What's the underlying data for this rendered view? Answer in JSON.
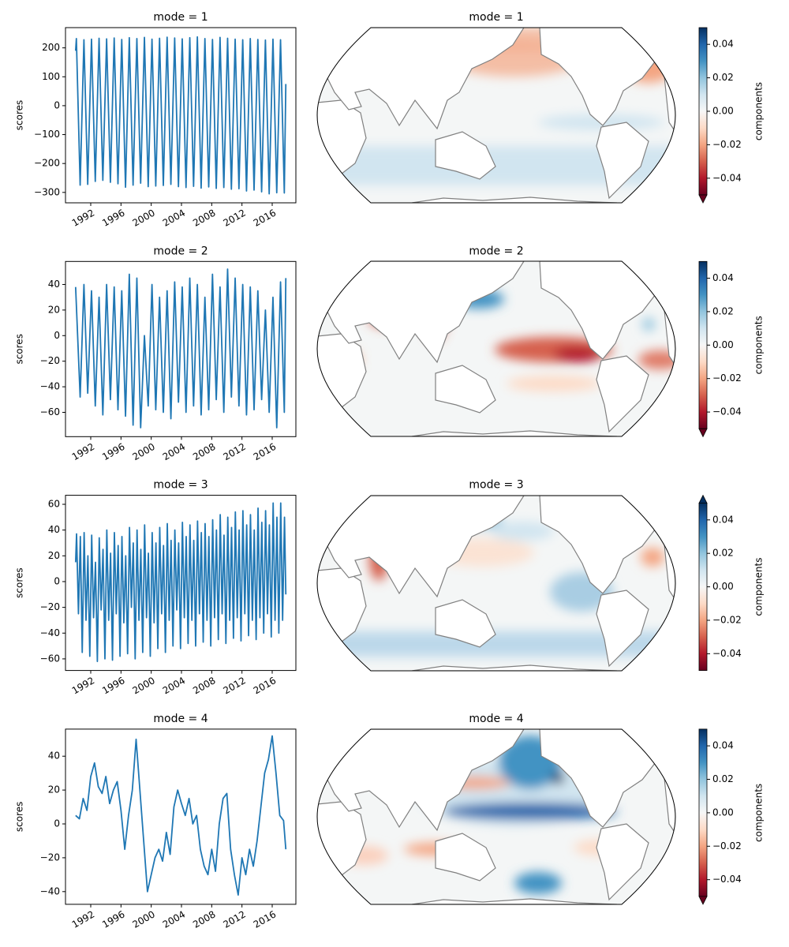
{
  "chart_data": [
    {
      "type": "line",
      "title": "mode = 1",
      "ylabel": "scores",
      "color": "#1f77b4",
      "xlim": [
        1988.66,
        2019.13
      ],
      "xticks": [
        1992,
        1996,
        2000,
        2004,
        2008,
        2012,
        2016
      ],
      "ylim": [
        -336,
        270
      ],
      "yticks": [
        {
          "value": -300,
          "label": "−300"
        },
        {
          "value": -200,
          "label": "−200"
        },
        {
          "value": -100,
          "label": "−100"
        },
        0,
        100,
        200
      ],
      "x": [
        1990.0,
        1990.1,
        1990.6,
        1991.1,
        1991.6,
        1992.1,
        1992.6,
        1993.1,
        1993.6,
        1994.1,
        1994.6,
        1995.1,
        1995.6,
        1996.1,
        1996.6,
        1997.1,
        1997.6,
        1998.1,
        1998.6,
        1999.1,
        1999.6,
        2000.1,
        2000.6,
        2001.1,
        2001.6,
        2002.1,
        2002.6,
        2003.1,
        2003.6,
        2004.1,
        2004.6,
        2005.1,
        2005.6,
        2006.1,
        2006.6,
        2007.1,
        2007.6,
        2008.1,
        2008.6,
        2009.1,
        2009.6,
        2010.1,
        2010.6,
        2011.1,
        2011.6,
        2012.1,
        2012.6,
        2013.1,
        2013.6,
        2014.1,
        2014.6,
        2015.1,
        2015.6,
        2016.1,
        2016.6,
        2017.1,
        2017.6,
        2017.8
      ],
      "values": [
        190,
        232,
        -275,
        228,
        -272,
        230,
        -262,
        233,
        -258,
        231,
        -265,
        234,
        -270,
        229,
        -282,
        235,
        -275,
        232,
        -268,
        236,
        -280,
        230,
        -278,
        233,
        -276,
        237,
        -272,
        234,
        -280,
        231,
        -283,
        235,
        -279,
        238,
        -285,
        232,
        -281,
        229,
        -286,
        236,
        -283,
        233,
        -289,
        230,
        -287,
        228,
        -295,
        232,
        -292,
        229,
        -298,
        227,
        -305,
        230,
        -301,
        228,
        -302,
        75
      ]
    },
    {
      "type": "map",
      "title": "mode = 1",
      "colorbar": {
        "label": "components",
        "lim": [
          -0.05,
          0.05
        ],
        "extend": "min",
        "ticks": [
          {
            "value": -0.04,
            "label": "−0.04"
          },
          {
            "value": -0.02,
            "label": "−0.02"
          },
          {
            "value": 0,
            "label": "0.00"
          },
          0.02,
          0.04
        ]
      }
    },
    {
      "type": "line",
      "title": "mode = 2",
      "ylabel": "scores",
      "color": "#1f77b4",
      "xlim": [
        1988.66,
        2019.13
      ],
      "xticks": [
        1992,
        1996,
        2000,
        2004,
        2008,
        2012,
        2016
      ],
      "ylim": [
        -79,
        58
      ],
      "yticks": [
        {
          "value": -60,
          "label": "−60"
        },
        {
          "value": -40,
          "label": "−40"
        },
        {
          "value": -20,
          "label": "−20"
        },
        0,
        20,
        40
      ],
      "x": [
        1990.0,
        1990.6,
        1991.1,
        1991.6,
        1992.1,
        1992.6,
        1993.1,
        1993.6,
        1994.1,
        1994.6,
        1995.1,
        1995.6,
        1996.1,
        1996.6,
        1997.1,
        1997.6,
        1998.1,
        1998.6,
        1999.1,
        1999.6,
        2000.1,
        2000.6,
        2001.1,
        2001.6,
        2002.1,
        2002.6,
        2003.1,
        2003.6,
        2004.1,
        2004.6,
        2005.1,
        2005.6,
        2006.1,
        2006.6,
        2007.1,
        2007.6,
        2008.1,
        2008.6,
        2009.1,
        2009.6,
        2010.1,
        2010.6,
        2011.1,
        2011.6,
        2012.1,
        2012.6,
        2013.1,
        2013.6,
        2014.1,
        2014.6,
        2015.1,
        2015.6,
        2016.1,
        2016.6,
        2017.1,
        2017.6,
        2017.8
      ],
      "values": [
        38,
        -48,
        40,
        -45,
        35,
        -55,
        30,
        -62,
        40,
        -50,
        38,
        -58,
        35,
        -63,
        48,
        -70,
        45,
        -72,
        0,
        -55,
        40,
        -58,
        30,
        -60,
        35,
        -65,
        42,
        -52,
        38,
        -60,
        45,
        -55,
        40,
        -62,
        30,
        -58,
        48,
        -50,
        38,
        -60,
        52,
        -48,
        45,
        -55,
        40,
        -62,
        38,
        -58,
        35,
        -50,
        20,
        -60,
        30,
        -72,
        42,
        -60,
        45
      ]
    },
    {
      "type": "map",
      "title": "mode = 2",
      "colorbar": {
        "label": "components",
        "lim": [
          -0.05,
          0.05
        ],
        "extend": "min",
        "ticks": [
          {
            "value": -0.04,
            "label": "−0.04"
          },
          {
            "value": -0.02,
            "label": "−0.02"
          },
          {
            "value": 0,
            "label": "0.00"
          },
          0.02,
          0.04
        ]
      }
    },
    {
      "type": "line",
      "title": "mode = 3",
      "ylabel": "scores",
      "color": "#1f77b4",
      "xlim": [
        1988.66,
        2019.13
      ],
      "xticks": [
        1992,
        1996,
        2000,
        2004,
        2008,
        2012,
        2016
      ],
      "ylim": [
        -69,
        67
      ],
      "yticks": [
        {
          "value": -60,
          "label": "−60"
        },
        {
          "value": -40,
          "label": "−40"
        },
        {
          "value": -20,
          "label": "−20"
        },
        0,
        20,
        40,
        60
      ],
      "x": [
        1990.0,
        1990.125,
        1990.375,
        1990.625,
        1990.875,
        1991.125,
        1991.375,
        1991.625,
        1991.875,
        1992.125,
        1992.375,
        1992.625,
        1992.875,
        1993.125,
        1993.375,
        1993.625,
        1993.875,
        1994.125,
        1994.375,
        1994.625,
        1994.875,
        1995.125,
        1995.375,
        1995.625,
        1995.875,
        1996.125,
        1996.375,
        1996.625,
        1996.875,
        1997.125,
        1997.375,
        1997.625,
        1997.875,
        1998.125,
        1998.375,
        1998.625,
        1998.875,
        1999.125,
        1999.375,
        1999.625,
        1999.875,
        2000.125,
        2000.375,
        2000.625,
        2000.875,
        2001.125,
        2001.375,
        2001.625,
        2001.875,
        2002.125,
        2002.375,
        2002.625,
        2002.875,
        2003.125,
        2003.375,
        2003.625,
        2003.875,
        2004.125,
        2004.375,
        2004.625,
        2004.875,
        2005.125,
        2005.375,
        2005.625,
        2005.875,
        2006.125,
        2006.375,
        2006.625,
        2006.875,
        2007.125,
        2007.375,
        2007.625,
        2007.875,
        2008.125,
        2008.375,
        2008.625,
        2008.875,
        2009.125,
        2009.375,
        2009.625,
        2009.875,
        2010.125,
        2010.375,
        2010.625,
        2010.875,
        2011.125,
        2011.375,
        2011.625,
        2011.875,
        2012.125,
        2012.375,
        2012.625,
        2012.875,
        2013.125,
        2013.375,
        2013.625,
        2013.875,
        2014.125,
        2014.375,
        2014.625,
        2014.875,
        2015.125,
        2015.375,
        2015.625,
        2015.875,
        2016.125,
        2016.375,
        2016.625,
        2016.875,
        2017.125,
        2017.375,
        2017.625,
        2017.8
      ],
      "values": [
        15,
        37,
        -25,
        35,
        -55,
        38,
        -30,
        20,
        -58,
        36,
        -28,
        15,
        -62,
        34,
        -22,
        25,
        -60,
        40,
        -30,
        22,
        -61,
        38,
        -25,
        28,
        -58,
        35,
        -32,
        20,
        -56,
        42,
        -20,
        30,
        -60,
        40,
        -30,
        25,
        -55,
        44,
        -28,
        22,
        -58,
        38,
        -32,
        30,
        -52,
        42,
        -25,
        28,
        -55,
        45,
        -30,
        32,
        -50,
        40,
        -22,
        30,
        -52,
        46,
        -28,
        35,
        -48,
        44,
        -30,
        32,
        -50,
        47,
        -25,
        38,
        -47,
        45,
        -30,
        35,
        -50,
        48,
        -28,
        40,
        -45,
        52,
        -25,
        36,
        -48,
        50,
        -30,
        42,
        -44,
        54,
        -28,
        40,
        -46,
        55,
        -25,
        44,
        -42,
        52,
        -30,
        40,
        -45,
        57,
        -28,
        46,
        -40,
        55,
        -25,
        44,
        -43,
        61,
        -30,
        50,
        -40,
        61,
        -30,
        50,
        -10
      ]
    },
    {
      "type": "map",
      "title": "mode = 3",
      "colorbar": {
        "label": "components",
        "lim": [
          -0.05,
          0.05
        ],
        "extend": "max",
        "ticks": [
          {
            "value": -0.04,
            "label": "−0.04"
          },
          {
            "value": -0.02,
            "label": "−0.02"
          },
          {
            "value": 0,
            "label": "0.00"
          },
          0.02,
          0.04
        ]
      }
    },
    {
      "type": "line",
      "title": "mode = 4",
      "ylabel": "scores",
      "color": "#1f77b4",
      "xlim": [
        1988.66,
        2019.13
      ],
      "xticks": [
        1992,
        1996,
        2000,
        2004,
        2008,
        2012,
        2016
      ],
      "ylim": [
        -47.5,
        56
      ],
      "yticks": [
        {
          "value": -40,
          "label": "−40"
        },
        {
          "value": -20,
          "label": "−20"
        },
        0,
        20,
        40
      ],
      "x": [
        1990.0,
        1990.5,
        1991.0,
        1991.5,
        1992.0,
        1992.5,
        1993.0,
        1993.5,
        1994.0,
        1994.5,
        1995.0,
        1995.5,
        1996.0,
        1996.5,
        1997.0,
        1997.5,
        1998.0,
        1998.5,
        1999.0,
        1999.5,
        2000.0,
        2000.5,
        2001.0,
        2001.5,
        2002.0,
        2002.5,
        2003.0,
        2003.5,
        2004.0,
        2004.5,
        2005.0,
        2005.5,
        2006.0,
        2006.5,
        2007.0,
        2007.5,
        2008.0,
        2008.5,
        2009.0,
        2009.5,
        2010.0,
        2010.5,
        2011.0,
        2011.5,
        2012.0,
        2012.5,
        2013.0,
        2013.5,
        2014.0,
        2014.5,
        2015.0,
        2015.5,
        2016.0,
        2016.5,
        2017.0,
        2017.5,
        2017.8
      ],
      "values": [
        5,
        3,
        15,
        8,
        28,
        36,
        22,
        18,
        28,
        12,
        20,
        25,
        8,
        -15,
        5,
        20,
        50,
        20,
        -10,
        -40,
        -30,
        -20,
        -15,
        -22,
        -5,
        -18,
        10,
        20,
        12,
        5,
        15,
        0,
        5,
        -15,
        -25,
        -30,
        -15,
        -28,
        0,
        15,
        18,
        -15,
        -30,
        -42,
        -20,
        -30,
        -15,
        -25,
        -10,
        10,
        30,
        38,
        52,
        30,
        5,
        2,
        -15
      ]
    },
    {
      "type": "map",
      "title": "mode = 4",
      "colorbar": {
        "label": "components",
        "lim": [
          -0.05,
          0.05
        ],
        "extend": "min",
        "ticks": [
          {
            "value": -0.04,
            "label": "−0.04"
          },
          {
            "value": -0.02,
            "label": "−0.02"
          },
          {
            "value": 0,
            "label": "0.00"
          },
          0.02,
          0.04
        ]
      }
    }
  ]
}
